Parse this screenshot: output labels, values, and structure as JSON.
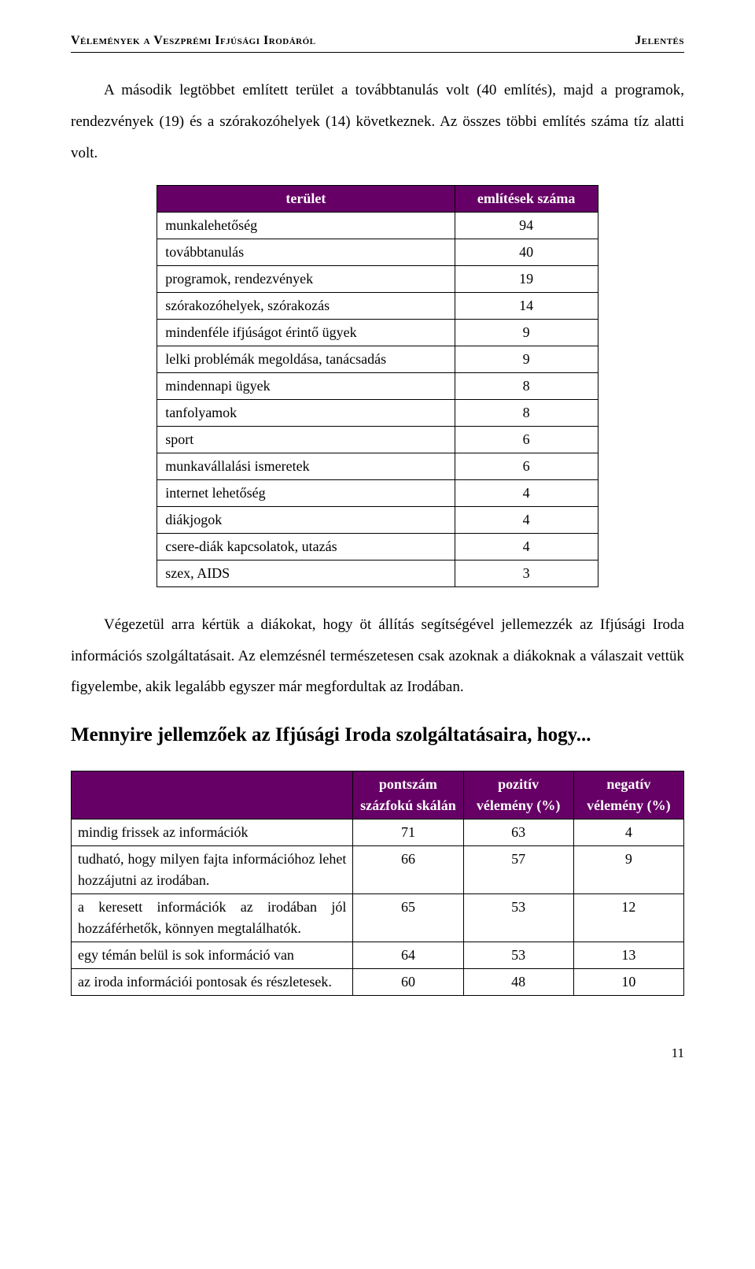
{
  "header": {
    "left": "Vélemények a Veszprémi Ifjúsági Irodáról",
    "right": "Jelentés"
  },
  "para1": "A második legtöbbet említett terület a továbbtanulás volt (40 említés), majd a programok, rendezvények (19) és a szórakozóhelyek (14) következnek. Az összes többi említés száma tíz alatti volt.",
  "table1": {
    "headers": [
      "terület",
      "említések száma"
    ],
    "rows": [
      {
        "label": "munkalehetőség",
        "value": "94"
      },
      {
        "label": "továbbtanulás",
        "value": "40"
      },
      {
        "label": "programok, rendezvények",
        "value": "19"
      },
      {
        "label": "szórakozóhelyek, szórakozás",
        "value": "14"
      },
      {
        "label": "mindenféle ifjúságot érintő ügyek",
        "value": "9"
      },
      {
        "label": "lelki problémák megoldása, tanácsadás",
        "value": "9"
      },
      {
        "label": "mindennapi ügyek",
        "value": "8"
      },
      {
        "label": "tanfolyamok",
        "value": "8"
      },
      {
        "label": "sport",
        "value": "6"
      },
      {
        "label": "munkavállalási ismeretek",
        "value": "6"
      },
      {
        "label": "internet lehetőség",
        "value": "4"
      },
      {
        "label": "diákjogok",
        "value": "4"
      },
      {
        "label": "csere-diák kapcsolatok, utazás",
        "value": "4"
      },
      {
        "label": "szex, AIDS",
        "value": "3"
      }
    ]
  },
  "para2": "Végezetül arra kértük a diákokat, hogy öt állítás segítségével jellemezzék az Ifjúsági Iroda információs szolgáltatásait. Az elemzésnél természetesen csak azoknak a diákoknak a válaszait vettük figyelembe, akik legalább egyszer már megfordultak az Irodában.",
  "heading2": "Mennyire jellemzőek az Ifjúsági Iroda szolgáltatásaira, hogy...",
  "table2": {
    "headers": [
      "",
      "pontszám százfokú skálán",
      "pozitív vélemény (%)",
      "negatív vélemény (%)"
    ],
    "rows": [
      {
        "label": "mindig frissek az információk",
        "v1": "71",
        "v2": "63",
        "v3": "4"
      },
      {
        "label": "tudható, hogy milyen fajta információhoz lehet hozzájutni az irodában.",
        "v1": "66",
        "v2": "57",
        "v3": "9"
      },
      {
        "label": "a keresett információk az irodában jól hozzáférhetők, könnyen megtalálhatók.",
        "v1": "65",
        "v2": "53",
        "v3": "12"
      },
      {
        "label": "egy témán belül is sok információ van",
        "v1": "64",
        "v2": "53",
        "v3": "13"
      },
      {
        "label": "az iroda információi pontosak és részletesek.",
        "v1": "60",
        "v2": "48",
        "v3": "10"
      }
    ]
  },
  "pageNumber": "11",
  "colors": {
    "tableHeaderBg": "#660066",
    "tableHeaderFg": "#ffffff",
    "pageBg": "#ffffff",
    "text": "#000000"
  }
}
